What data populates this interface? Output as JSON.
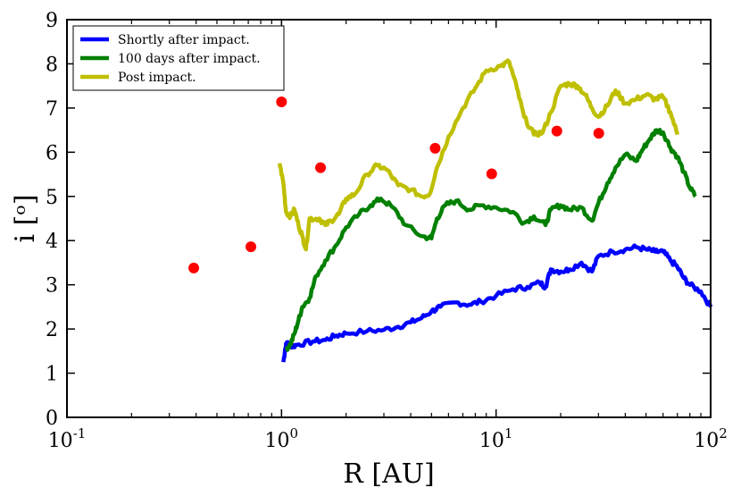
{
  "chart_data": {
    "type": "line",
    "xlabel": "R [AU]",
    "ylabel": "i [ᵒ]",
    "xscale": "log",
    "xlim": [
      0.1,
      100
    ],
    "ylim": [
      0,
      9
    ],
    "x_ticks": [
      {
        "value": 0.1,
        "base": "10",
        "exp": "-1"
      },
      {
        "value": 1,
        "base": "10",
        "exp": "0"
      },
      {
        "value": 10,
        "base": "10",
        "exp": "1"
      },
      {
        "value": 100,
        "base": "10",
        "exp": "2"
      }
    ],
    "y_ticks": [
      0,
      1,
      2,
      3,
      4,
      5,
      6,
      7,
      8,
      9
    ],
    "legend": {
      "position": "top-left",
      "entries": [
        {
          "label": "Shortly after impact.",
          "color": "#0000ff"
        },
        {
          "label": "100 days after impact.",
          "color": "#008000"
        },
        {
          "label": "Post impact.",
          "color": "#bfbf00"
        }
      ]
    },
    "series": [
      {
        "name": "Shortly after impact.",
        "color": "#0000ff",
        "points": [
          [
            1.02,
            1.25
          ],
          [
            1.04,
            1.55
          ],
          [
            1.06,
            1.7
          ],
          [
            1.1,
            1.6
          ],
          [
            1.2,
            1.65
          ],
          [
            1.4,
            1.72
          ],
          [
            1.6,
            1.75
          ],
          [
            1.8,
            1.85
          ],
          [
            2.0,
            1.9
          ],
          [
            2.5,
            1.95
          ],
          [
            3.0,
            1.98
          ],
          [
            3.5,
            2.05
          ],
          [
            4.0,
            2.15
          ],
          [
            4.5,
            2.25
          ],
          [
            5.0,
            2.4
          ],
          [
            5.5,
            2.5
          ],
          [
            6.5,
            2.6
          ],
          [
            7.5,
            2.55
          ],
          [
            8.5,
            2.62
          ],
          [
            10,
            2.75
          ],
          [
            12,
            2.9
          ],
          [
            14,
            2.95
          ],
          [
            16,
            3.05
          ],
          [
            17,
            2.95
          ],
          [
            18,
            3.35
          ],
          [
            20,
            3.3
          ],
          [
            22,
            3.35
          ],
          [
            25,
            3.5
          ],
          [
            28,
            3.3
          ],
          [
            30,
            3.65
          ],
          [
            35,
            3.75
          ],
          [
            40,
            3.8
          ],
          [
            45,
            3.85
          ],
          [
            50,
            3.8
          ],
          [
            55,
            3.75
          ],
          [
            60,
            3.75
          ],
          [
            65,
            3.55
          ],
          [
            70,
            3.4
          ],
          [
            75,
            3.15
          ],
          [
            80,
            3.0
          ],
          [
            90,
            2.85
          ],
          [
            100,
            2.5
          ]
        ]
      },
      {
        "name": "100 days after impact.",
        "color": "#008000",
        "points": [
          [
            1.05,
            1.55
          ],
          [
            1.1,
            1.65
          ],
          [
            1.15,
            1.9
          ],
          [
            1.2,
            2.2
          ],
          [
            1.25,
            2.5
          ],
          [
            1.35,
            2.7
          ],
          [
            1.45,
            3.2
          ],
          [
            1.6,
            3.55
          ],
          [
            1.8,
            3.9
          ],
          [
            2.0,
            4.3
          ],
          [
            2.3,
            4.6
          ],
          [
            2.6,
            4.8
          ],
          [
            2.9,
            4.95
          ],
          [
            3.3,
            4.75
          ],
          [
            3.8,
            4.35
          ],
          [
            4.5,
            4.1
          ],
          [
            5.0,
            4.05
          ],
          [
            5.3,
            4.5
          ],
          [
            5.8,
            4.8
          ],
          [
            6.5,
            4.9
          ],
          [
            7.5,
            4.7
          ],
          [
            8.5,
            4.8
          ],
          [
            10,
            4.75
          ],
          [
            12,
            4.65
          ],
          [
            13.5,
            4.4
          ],
          [
            15,
            4.55
          ],
          [
            17,
            4.35
          ],
          [
            18,
            4.7
          ],
          [
            20,
            4.8
          ],
          [
            22,
            4.7
          ],
          [
            25,
            4.75
          ],
          [
            28,
            4.45
          ],
          [
            30,
            4.85
          ],
          [
            33,
            5.3
          ],
          [
            36,
            5.65
          ],
          [
            40,
            5.95
          ],
          [
            45,
            5.8
          ],
          [
            48,
            6.05
          ],
          [
            52,
            6.3
          ],
          [
            56,
            6.5
          ],
          [
            60,
            6.45
          ],
          [
            65,
            6.1
          ],
          [
            70,
            5.9
          ],
          [
            75,
            5.55
          ],
          [
            80,
            5.2
          ],
          [
            85,
            5.0
          ]
        ]
      },
      {
        "name": "Post impact.",
        "color": "#bfbf00",
        "points": [
          [
            0.98,
            5.75
          ],
          [
            1.02,
            5.3
          ],
          [
            1.05,
            4.65
          ],
          [
            1.1,
            4.55
          ],
          [
            1.15,
            4.7
          ],
          [
            1.2,
            4.35
          ],
          [
            1.25,
            4.1
          ],
          [
            1.3,
            3.8
          ],
          [
            1.35,
            4.5
          ],
          [
            1.5,
            4.5
          ],
          [
            1.6,
            4.35
          ],
          [
            1.7,
            4.45
          ],
          [
            1.85,
            4.6
          ],
          [
            2.0,
            4.95
          ],
          [
            2.2,
            5.05
          ],
          [
            2.5,
            5.5
          ],
          [
            2.8,
            5.7
          ],
          [
            3.1,
            5.6
          ],
          [
            3.5,
            5.25
          ],
          [
            4.0,
            5.15
          ],
          [
            4.5,
            5.0
          ],
          [
            4.9,
            5.05
          ],
          [
            5.3,
            5.65
          ],
          [
            6.0,
            6.35
          ],
          [
            7.0,
            7.0
          ],
          [
            8.0,
            7.45
          ],
          [
            9.0,
            7.85
          ],
          [
            10.5,
            7.95
          ],
          [
            11.5,
            8.05
          ],
          [
            12.5,
            7.45
          ],
          [
            13.5,
            6.8
          ],
          [
            15,
            6.4
          ],
          [
            16.5,
            6.45
          ],
          [
            18,
            6.9
          ],
          [
            20,
            7.5
          ],
          [
            22,
            7.55
          ],
          [
            24,
            7.5
          ],
          [
            26,
            7.3
          ],
          [
            28,
            7.0
          ],
          [
            30,
            6.8
          ],
          [
            33,
            7.05
          ],
          [
            36,
            7.4
          ],
          [
            40,
            7.1
          ],
          [
            45,
            7.2
          ],
          [
            50,
            7.3
          ],
          [
            55,
            7.2
          ],
          [
            60,
            7.25
          ],
          [
            65,
            6.9
          ],
          [
            70,
            6.4
          ]
        ]
      },
      {
        "name": "",
        "type": "scatter",
        "color": "#ff0000",
        "points": [
          [
            0.39,
            3.38
          ],
          [
            0.72,
            3.86
          ],
          [
            1.0,
            7.14
          ],
          [
            1.52,
            5.65
          ],
          [
            5.2,
            6.09
          ],
          [
            9.54,
            5.51
          ],
          [
            19.2,
            6.48
          ],
          [
            30.1,
            6.43
          ]
        ]
      }
    ]
  }
}
